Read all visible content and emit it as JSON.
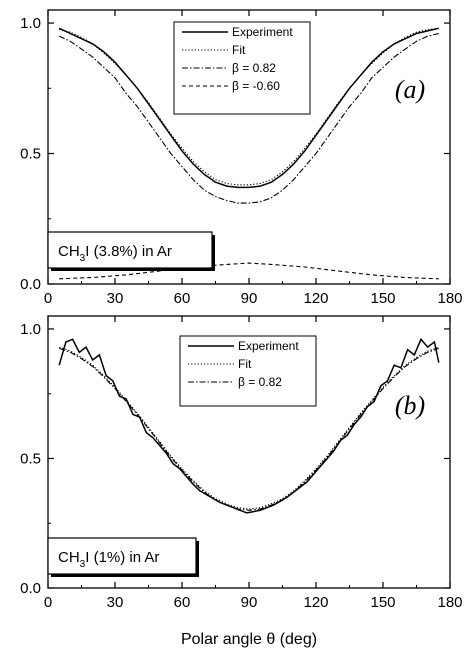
{
  "xlabel": "Polar angle θ (deg)",
  "chart_data": [
    {
      "type": "line",
      "panel": "(a)",
      "sample": {
        "pre": "CH",
        "sub": "3",
        "post": "I (3.8%) in Ar"
      },
      "xlim": [
        0,
        180
      ],
      "ylim": [
        0.0,
        1.05
      ],
      "xticks": [
        0,
        30,
        60,
        90,
        120,
        150,
        180
      ],
      "yticks": [
        0.0,
        0.5,
        1.0
      ],
      "ytick_labels": [
        "0.0",
        "0.5",
        "1.0"
      ],
      "legend": [
        "Experiment",
        "Fit",
        "β = 0.82",
        "β = -0.60"
      ],
      "series": [
        {
          "name": "Experiment",
          "style": "solid",
          "x": [
            5,
            10,
            15,
            20,
            25,
            30,
            35,
            40,
            45,
            50,
            55,
            60,
            65,
            70,
            75,
            80,
            85,
            90,
            95,
            100,
            105,
            110,
            115,
            120,
            125,
            130,
            135,
            140,
            145,
            150,
            155,
            160,
            165,
            170,
            175
          ],
          "y": [
            0.98,
            0.96,
            0.94,
            0.92,
            0.89,
            0.85,
            0.8,
            0.75,
            0.69,
            0.63,
            0.57,
            0.51,
            0.46,
            0.42,
            0.39,
            0.375,
            0.37,
            0.37,
            0.375,
            0.39,
            0.42,
            0.46,
            0.51,
            0.57,
            0.63,
            0.69,
            0.75,
            0.8,
            0.85,
            0.89,
            0.92,
            0.94,
            0.96,
            0.97,
            0.98
          ]
        },
        {
          "name": "Fit",
          "style": "dotted",
          "x": [
            5,
            10,
            15,
            20,
            25,
            30,
            35,
            40,
            45,
            50,
            55,
            60,
            65,
            70,
            75,
            80,
            85,
            90,
            95,
            100,
            105,
            110,
            115,
            120,
            125,
            130,
            135,
            140,
            145,
            150,
            155,
            160,
            165,
            170,
            175
          ],
          "y": [
            0.975,
            0.965,
            0.945,
            0.92,
            0.885,
            0.845,
            0.8,
            0.75,
            0.695,
            0.635,
            0.575,
            0.52,
            0.47,
            0.43,
            0.4,
            0.385,
            0.38,
            0.38,
            0.385,
            0.4,
            0.43,
            0.47,
            0.52,
            0.575,
            0.635,
            0.695,
            0.75,
            0.8,
            0.845,
            0.885,
            0.92,
            0.945,
            0.965,
            0.975,
            0.98
          ]
        },
        {
          "name": "β = 0.82",
          "style": "dashdot",
          "x": [
            5,
            10,
            15,
            20,
            25,
            30,
            35,
            40,
            45,
            50,
            55,
            60,
            65,
            70,
            75,
            80,
            85,
            90,
            95,
            100,
            105,
            110,
            115,
            120,
            125,
            130,
            135,
            140,
            145,
            150,
            155,
            160,
            165,
            170,
            175
          ],
          "y": [
            0.95,
            0.93,
            0.9,
            0.87,
            0.83,
            0.79,
            0.73,
            0.68,
            0.62,
            0.56,
            0.5,
            0.45,
            0.4,
            0.36,
            0.335,
            0.32,
            0.31,
            0.31,
            0.315,
            0.33,
            0.36,
            0.4,
            0.45,
            0.5,
            0.56,
            0.62,
            0.68,
            0.73,
            0.79,
            0.83,
            0.87,
            0.9,
            0.93,
            0.95,
            0.96
          ]
        },
        {
          "name": "β = -0.60",
          "style": "dashed",
          "x": [
            5,
            20,
            35,
            50,
            65,
            80,
            90,
            100,
            115,
            130,
            145,
            160,
            175
          ],
          "y": [
            0.02,
            0.025,
            0.035,
            0.05,
            0.065,
            0.075,
            0.08,
            0.075,
            0.065,
            0.05,
            0.035,
            0.025,
            0.02
          ]
        }
      ]
    },
    {
      "type": "line",
      "panel": "(b)",
      "sample": {
        "pre": "CH",
        "sub": "3",
        "post": "I (1%) in Ar"
      },
      "xlim": [
        0,
        180
      ],
      "ylim": [
        0.0,
        1.05
      ],
      "xticks": [
        0,
        30,
        60,
        90,
        120,
        150,
        180
      ],
      "yticks": [
        0.0,
        0.5,
        1.0
      ],
      "ytick_labels": [
        "0.0",
        "0.5",
        "1.0"
      ],
      "legend": [
        "Experiment",
        "Fit",
        "β = 0.82"
      ],
      "series": [
        {
          "name": "Experiment",
          "style": "solid",
          "x": [
            5,
            8,
            11,
            14,
            17,
            20,
            23,
            26,
            29,
            32,
            35,
            38,
            41,
            44,
            47,
            50,
            53,
            56,
            59,
            62,
            65,
            68,
            71,
            74,
            77,
            80,
            83,
            86,
            89,
            92,
            95,
            98,
            101,
            104,
            107,
            110,
            113,
            116,
            119,
            122,
            125,
            128,
            131,
            134,
            137,
            140,
            143,
            146,
            149,
            152,
            155,
            158,
            161,
            164,
            167,
            170,
            173,
            175
          ],
          "y": [
            0.86,
            0.95,
            0.96,
            0.91,
            0.93,
            0.88,
            0.9,
            0.82,
            0.8,
            0.74,
            0.73,
            0.67,
            0.66,
            0.6,
            0.58,
            0.55,
            0.52,
            0.48,
            0.46,
            0.43,
            0.4,
            0.375,
            0.36,
            0.345,
            0.33,
            0.32,
            0.31,
            0.3,
            0.29,
            0.295,
            0.3,
            0.31,
            0.32,
            0.335,
            0.35,
            0.37,
            0.39,
            0.41,
            0.44,
            0.47,
            0.5,
            0.53,
            0.57,
            0.59,
            0.63,
            0.66,
            0.7,
            0.72,
            0.78,
            0.8,
            0.86,
            0.85,
            0.92,
            0.9,
            0.96,
            0.93,
            0.95,
            0.87
          ]
        },
        {
          "name": "Fit",
          "style": "dotted",
          "x": [
            5,
            10,
            15,
            20,
            25,
            30,
            35,
            40,
            45,
            50,
            55,
            60,
            65,
            70,
            75,
            80,
            85,
            90,
            95,
            100,
            105,
            110,
            115,
            120,
            125,
            130,
            135,
            140,
            145,
            150,
            155,
            160,
            165,
            170,
            175
          ],
          "y": [
            0.93,
            0.915,
            0.89,
            0.86,
            0.82,
            0.775,
            0.725,
            0.675,
            0.62,
            0.565,
            0.51,
            0.46,
            0.415,
            0.375,
            0.345,
            0.325,
            0.31,
            0.305,
            0.31,
            0.325,
            0.345,
            0.375,
            0.415,
            0.46,
            0.51,
            0.565,
            0.62,
            0.675,
            0.725,
            0.775,
            0.82,
            0.86,
            0.89,
            0.915,
            0.93
          ]
        },
        {
          "name": "β = 0.82",
          "style": "dashdot",
          "x": [
            5,
            10,
            15,
            20,
            25,
            30,
            35,
            40,
            45,
            50,
            55,
            60,
            65,
            70,
            75,
            80,
            85,
            90,
            95,
            100,
            105,
            110,
            115,
            120,
            125,
            130,
            135,
            140,
            145,
            150,
            155,
            160,
            165,
            170,
            175
          ],
          "y": [
            0.925,
            0.91,
            0.885,
            0.855,
            0.815,
            0.77,
            0.72,
            0.67,
            0.615,
            0.56,
            0.505,
            0.455,
            0.41,
            0.37,
            0.34,
            0.32,
            0.305,
            0.3,
            0.305,
            0.32,
            0.34,
            0.37,
            0.41,
            0.455,
            0.505,
            0.56,
            0.615,
            0.67,
            0.72,
            0.77,
            0.815,
            0.855,
            0.885,
            0.91,
            0.925
          ]
        }
      ]
    }
  ]
}
